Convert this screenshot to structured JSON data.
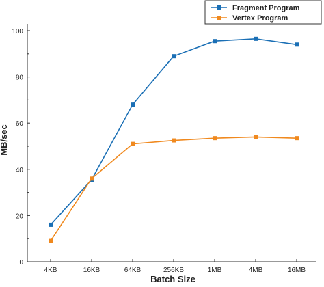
{
  "chart_data": {
    "type": "line",
    "xlabel": "Batch Size",
    "ylabel": "MB/sec",
    "categories": [
      "4KB",
      "16KB",
      "64KB",
      "256KB",
      "1MB",
      "4MB",
      "16MB"
    ],
    "ylim": [
      0,
      100
    ],
    "yticks": [
      0,
      20,
      40,
      60,
      80,
      100
    ],
    "grid": false,
    "legend_position": "top-right",
    "series": [
      {
        "name": "Fragment Program",
        "color": "#1a6fb5",
        "marker": "square",
        "values": [
          16,
          35.5,
          68,
          89,
          95.5,
          96.5,
          94
        ]
      },
      {
        "name": "Vertex Program",
        "color": "#f0891e",
        "marker": "square",
        "values": [
          9,
          36,
          51,
          52.5,
          53.5,
          54,
          53.5
        ]
      }
    ]
  }
}
